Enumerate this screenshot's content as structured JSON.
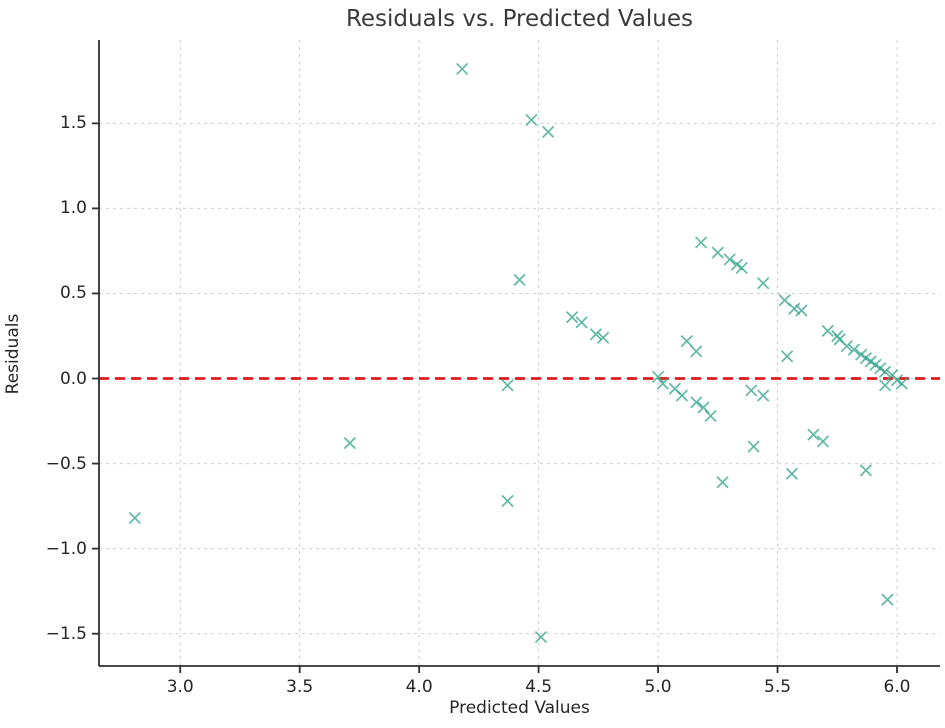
{
  "figure": {
    "title": "Residuals vs. Predicted Values",
    "xlabel": "Predicted Values",
    "ylabel": "Residuals"
  },
  "chart_data": {
    "type": "scatter",
    "title": "Residuals vs. Predicted Values",
    "xlabel": "Predicted Values",
    "ylabel": "Residuals",
    "xlim": [
      2.66,
      6.18
    ],
    "ylim": [
      -1.69,
      1.99
    ],
    "xticks": [
      3.0,
      3.5,
      4.0,
      4.5,
      5.0,
      5.5,
      6.0
    ],
    "xtick_labels": [
      "3.0",
      "3.5",
      "4.0",
      "4.5",
      "5.0",
      "5.5",
      "6.0"
    ],
    "yticks": [
      -1.5,
      -1.0,
      -0.5,
      0.0,
      0.5,
      1.0,
      1.5
    ],
    "ytick_labels": [
      "−1.5",
      "−1.0",
      "−0.5",
      "0.0",
      "0.5",
      "1.0",
      "1.5"
    ],
    "grid": true,
    "legend": "none",
    "marker": "x",
    "marker_color": "#3aa78f",
    "grid_color": "#cfcfcf",
    "spine_color": "#2f2f2f",
    "zero_line": {
      "y": 0.0,
      "color": "#e31a1a",
      "style": "dashed"
    },
    "points": [
      [
        2.81,
        -0.82
      ],
      [
        3.71,
        -0.38
      ],
      [
        4.18,
        1.82
      ],
      [
        4.47,
        1.52
      ],
      [
        4.54,
        1.45
      ],
      [
        4.42,
        0.58
      ],
      [
        4.37,
        -0.04
      ],
      [
        4.37,
        -0.72
      ],
      [
        4.51,
        -1.52
      ],
      [
        4.64,
        0.36
      ],
      [
        4.68,
        0.33
      ],
      [
        4.74,
        0.26
      ],
      [
        4.77,
        0.24
      ],
      [
        5.0,
        0.01
      ],
      [
        5.02,
        -0.03
      ],
      [
        5.07,
        -0.06
      ],
      [
        5.1,
        -0.1
      ],
      [
        5.16,
        -0.14
      ],
      [
        5.19,
        -0.17
      ],
      [
        5.22,
        -0.22
      ],
      [
        5.12,
        0.22
      ],
      [
        5.16,
        0.16
      ],
      [
        5.18,
        0.8
      ],
      [
        5.25,
        0.74
      ],
      [
        5.3,
        0.7
      ],
      [
        5.33,
        0.67
      ],
      [
        5.35,
        0.65
      ],
      [
        5.44,
        0.56
      ],
      [
        5.53,
        0.46
      ],
      [
        5.57,
        0.41
      ],
      [
        5.6,
        0.4
      ],
      [
        5.39,
        -0.07
      ],
      [
        5.44,
        -0.1
      ],
      [
        5.54,
        0.13
      ],
      [
        5.4,
        -0.4
      ],
      [
        5.27,
        -0.61
      ],
      [
        5.56,
        -0.56
      ],
      [
        5.65,
        -0.33
      ],
      [
        5.69,
        -0.37
      ],
      [
        5.87,
        -0.54
      ],
      [
        5.96,
        -1.3
      ],
      [
        5.71,
        0.28
      ],
      [
        5.75,
        0.25
      ],
      [
        5.76,
        0.23
      ],
      [
        5.79,
        0.19
      ],
      [
        5.82,
        0.17
      ],
      [
        5.85,
        0.14
      ],
      [
        5.87,
        0.12
      ],
      [
        5.89,
        0.1
      ],
      [
        5.91,
        0.08
      ],
      [
        5.93,
        0.06
      ],
      [
        5.95,
        0.04
      ],
      [
        5.98,
        0.02
      ],
      [
        6.0,
        -0.01
      ],
      [
        6.02,
        -0.03
      ],
      [
        5.95,
        -0.04
      ]
    ]
  }
}
